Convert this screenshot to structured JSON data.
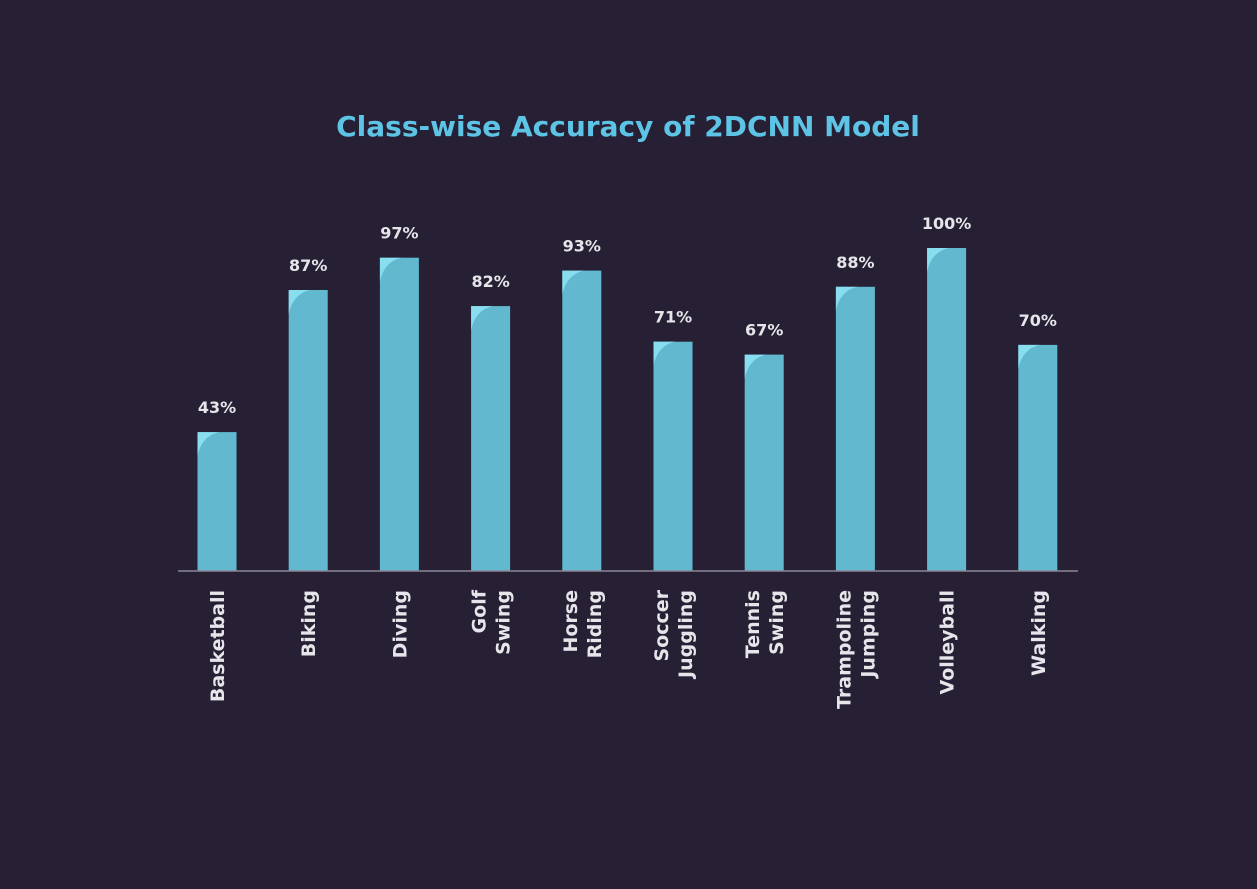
{
  "chart_data": {
    "type": "bar",
    "title": "Class-wise Accuracy of 2DCNN Model",
    "xlabel": "",
    "ylabel": "",
    "ylim": [
      0,
      100
    ],
    "grid": false,
    "legend": "none",
    "value_suffix": "%",
    "categories": [
      [
        "Basketball"
      ],
      [
        "Biking"
      ],
      [
        "Diving"
      ],
      [
        "Golf",
        "Swing"
      ],
      [
        "Horse",
        "Riding"
      ],
      [
        "Soccer",
        "Juggling"
      ],
      [
        "Tennis",
        "Swing"
      ],
      [
        "Trampoline",
        "Jumping"
      ],
      [
        "Volleyball"
      ],
      [
        "Walking"
      ]
    ],
    "values": [
      43,
      87,
      97,
      82,
      93,
      71,
      67,
      88,
      100,
      70
    ],
    "data_labels": [
      "43%",
      "87%",
      "97%",
      "82%",
      "93%",
      "71%",
      "67%",
      "88%",
      "100%",
      "70%"
    ],
    "colors": {
      "background": "#272034",
      "bar": "#62b9cf",
      "bar_highlight": "#8fe3f3",
      "title": "#5ec4e6",
      "label": "#e6e6ea",
      "axis": "#8a8596"
    }
  }
}
